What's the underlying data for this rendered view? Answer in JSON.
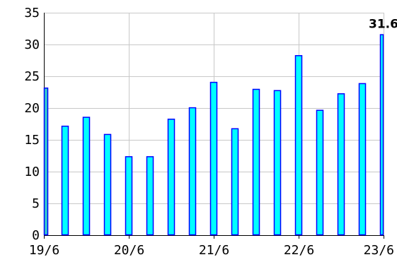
{
  "chart_data": {
    "type": "bar",
    "title": "",
    "xlabel": "",
    "ylabel": "",
    "ylim": [
      0,
      35
    ],
    "y_ticks": [
      0,
      5,
      10,
      15,
      20,
      25,
      30,
      35
    ],
    "x_tick_labels": [
      "19/6",
      "20/6",
      "21/6",
      "22/6",
      "23/6"
    ],
    "values": [
      23.2,
      17.2,
      18.6,
      15.9,
      12.4,
      12.4,
      18.3,
      20.1,
      24.1,
      16.8,
      23.0,
      22.8,
      28.3,
      19.7,
      22.3,
      23.9,
      31.6
    ],
    "data_labels": [
      {
        "index": 16,
        "text": "31.6"
      }
    ],
    "grid": true,
    "legend": "none",
    "bar_fill": "#00ffff",
    "bar_stroke": "#0000ff",
    "first_bar_fill": "#33cccc",
    "grid_color": "#c8c8c8",
    "axis_color": "#000000"
  }
}
